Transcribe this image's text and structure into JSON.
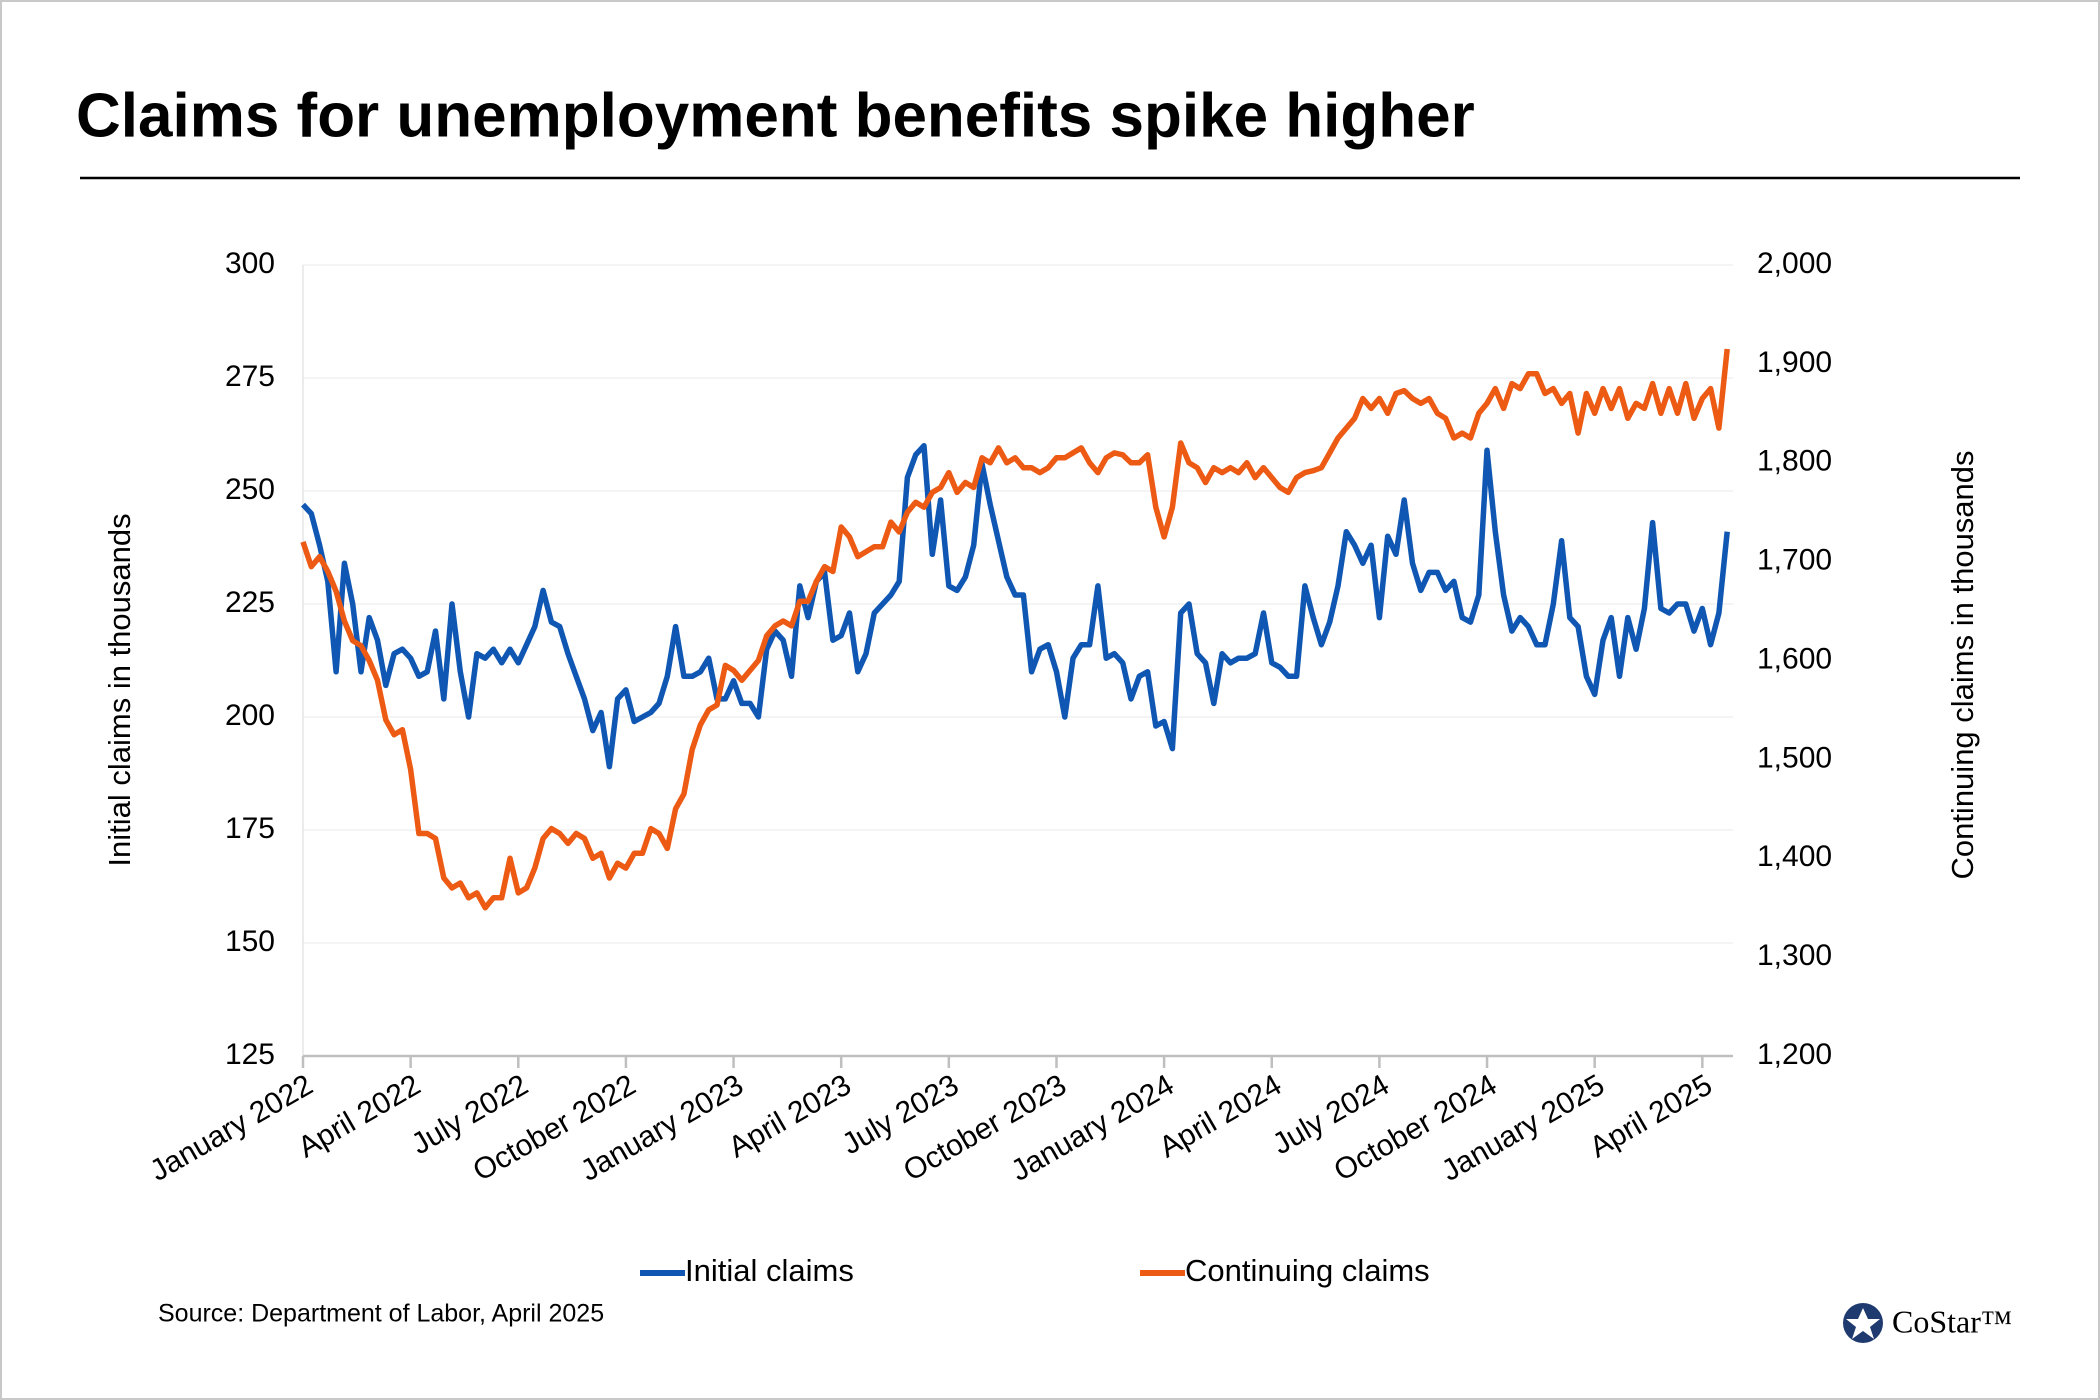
{
  "chart_data": {
    "type": "line",
    "title": "Claims for unemployment benefits spike higher",
    "ylabel": "Initial claims in thousands",
    "y2label": "Continuing claims in thousands",
    "source": "Source: Department of Labor, April 2025",
    "logo": "CoStar™",
    "grid": true,
    "legend": "bottom",
    "ylim": [
      125,
      300
    ],
    "yticks": [
      125,
      150,
      175,
      200,
      225,
      250,
      275,
      300
    ],
    "y2lim": [
      1200,
      2000
    ],
    "y2ticks": [
      {
        "value": 1200,
        "label": "1,200"
      },
      {
        "value": 1300,
        "label": "1,300"
      },
      {
        "value": 1400,
        "label": "1,400"
      },
      {
        "value": 1500,
        "label": "1,500"
      },
      {
        "value": 1600,
        "label": "1,600"
      },
      {
        "value": 1700,
        "label": "1,700"
      },
      {
        "value": 1800,
        "label": "1,800"
      },
      {
        "value": 1900,
        "label": "1,900"
      },
      {
        "value": 2000,
        "label": "2,000"
      }
    ],
    "categories": [
      "January 2022",
      null,
      null,
      null,
      null,
      null,
      null,
      null,
      null,
      null,
      null,
      null,
      null,
      "April 2022",
      null,
      null,
      null,
      null,
      null,
      null,
      null,
      null,
      null,
      null,
      null,
      null,
      "July 2022",
      null,
      null,
      null,
      null,
      null,
      null,
      null,
      null,
      null,
      null,
      null,
      null,
      "October 2022",
      null,
      null,
      null,
      null,
      null,
      null,
      null,
      null,
      null,
      null,
      null,
      null,
      "January 2023",
      null,
      null,
      null,
      null,
      null,
      null,
      null,
      null,
      null,
      null,
      null,
      null,
      "April 2023",
      null,
      null,
      null,
      null,
      null,
      null,
      null,
      null,
      null,
      null,
      null,
      null,
      "July 2023",
      null,
      null,
      null,
      null,
      null,
      null,
      null,
      null,
      null,
      null,
      null,
      null,
      "October 2023",
      null,
      null,
      null,
      null,
      null,
      null,
      null,
      null,
      null,
      null,
      null,
      null,
      "January 2024",
      null,
      null,
      null,
      null,
      null,
      null,
      null,
      null,
      null,
      null,
      null,
      null,
      "April 2024",
      null,
      null,
      null,
      null,
      null,
      null,
      null,
      null,
      null,
      null,
      null,
      null,
      "July 2024",
      null,
      null,
      null,
      null,
      null,
      null,
      null,
      null,
      null,
      null,
      null,
      null,
      "October 2024",
      null,
      null,
      null,
      null,
      null,
      null,
      null,
      null,
      null,
      null,
      null,
      null,
      "January 2025",
      null,
      null,
      null,
      null,
      null,
      null,
      null,
      null,
      null,
      null,
      null,
      null,
      "April 2025",
      null,
      null,
      null
    ],
    "series": [
      {
        "name": "Initial claims",
        "color": "#0f57b3",
        "axis": "y",
        "values": [
          247,
          245,
          238,
          230,
          210,
          234,
          225,
          210,
          222,
          217,
          207,
          214,
          215,
          213,
          209,
          210,
          219,
          204,
          225,
          210,
          200,
          214,
          213,
          215,
          212,
          215,
          212,
          216,
          220,
          228,
          221,
          220,
          214,
          209,
          204,
          197,
          201,
          189,
          204,
          206,
          199,
          200,
          201,
          203,
          209,
          220,
          209,
          209,
          210,
          213,
          204,
          204,
          208,
          203,
          203,
          200,
          215,
          219,
          217,
          209,
          229,
          222,
          230,
          232,
          217,
          218,
          223,
          210,
          214,
          223,
          225,
          227,
          230,
          253,
          258,
          260,
          236,
          248,
          229,
          228,
          231,
          238,
          256,
          247,
          239,
          231,
          227,
          227,
          210,
          215,
          216,
          210,
          200,
          213,
          216,
          216,
          229,
          213,
          214,
          212,
          204,
          209,
          210,
          198,
          199,
          193,
          223,
          225,
          214,
          212,
          203,
          214,
          212,
          213,
          213,
          214,
          223,
          212,
          211,
          209,
          209,
          229,
          222,
          216,
          221,
          229,
          241,
          238,
          234,
          238,
          222,
          240,
          236,
          248,
          234,
          228,
          232,
          232,
          228,
          230,
          222,
          221,
          227,
          259,
          241,
          227,
          219,
          222,
          220,
          216,
          216,
          225,
          239,
          222,
          220,
          209,
          205,
          217,
          222,
          209,
          222,
          215,
          224,
          243,
          224,
          223,
          225,
          225,
          219,
          224,
          216,
          223,
          241
        ]
      },
      {
        "name": "Continuing claims",
        "color": "#ec5a14",
        "axis": "y2",
        "values": [
          1720,
          1695,
          1705,
          1690,
          1670,
          1640,
          1620,
          1615,
          1600,
          1580,
          1540,
          1525,
          1530,
          1490,
          1425,
          1425,
          1420,
          1380,
          1370,
          1375,
          1360,
          1365,
          1350,
          1360,
          1360,
          1400,
          1365,
          1370,
          1390,
          1420,
          1430,
          1425,
          1415,
          1425,
          1420,
          1400,
          1405,
          1380,
          1395,
          1390,
          1405,
          1405,
          1430,
          1425,
          1410,
          1450,
          1465,
          1510,
          1535,
          1550,
          1555,
          1595,
          1590,
          1580,
          1590,
          1600,
          1625,
          1635,
          1640,
          1635,
          1660,
          1660,
          1680,
          1695,
          1690,
          1735,
          1725,
          1705,
          1710,
          1715,
          1715,
          1740,
          1730,
          1750,
          1760,
          1755,
          1770,
          1775,
          1790,
          1770,
          1780,
          1775,
          1805,
          1800,
          1815,
          1800,
          1805,
          1795,
          1795,
          1790,
          1795,
          1805,
          1805,
          1810,
          1815,
          1800,
          1790,
          1805,
          1810,
          1808,
          1800,
          1800,
          1808,
          1755,
          1725,
          1755,
          1820,
          1800,
          1795,
          1780,
          1795,
          1790,
          1795,
          1790,
          1800,
          1785,
          1795,
          1785,
          1775,
          1770,
          1785,
          1790,
          1792,
          1795,
          1810,
          1825,
          1835,
          1845,
          1865,
          1855,
          1865,
          1850,
          1870,
          1873,
          1865,
          1860,
          1865,
          1850,
          1845,
          1825,
          1830,
          1825,
          1850,
          1860,
          1875,
          1855,
          1880,
          1875,
          1890,
          1890,
          1870,
          1875,
          1860,
          1870,
          1830,
          1870,
          1850,
          1875,
          1855,
          1875,
          1845,
          1860,
          1855,
          1880,
          1850,
          1875,
          1850,
          1880,
          1845,
          1865,
          1875,
          1835,
          1915
        ]
      }
    ]
  }
}
